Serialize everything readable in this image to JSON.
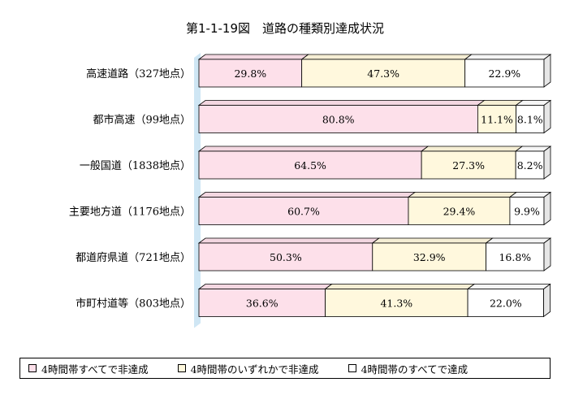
{
  "chart_data": {
    "type": "bar",
    "stacked": "percent",
    "orientation": "horizontal",
    "title": "第1-1-19図　道路の種類別達成状況",
    "categories": [
      "高速道路（327地点）",
      "都市高速（99地点）",
      "一般国道（1838地点）",
      "主要地方道（1176地点）",
      "都道府県道（721地点）",
      "市町村道等（803地点）"
    ],
    "series": [
      {
        "name": "4時間帯すべてで非達成",
        "color": "#fde0ea",
        "values": [
          29.8,
          80.8,
          64.5,
          60.7,
          50.3,
          36.6
        ]
      },
      {
        "name": "4時間帯のいずれかで非達成",
        "color": "#fff8dd",
        "values": [
          47.3,
          11.1,
          27.3,
          29.4,
          32.9,
          41.3
        ]
      },
      {
        "name": "4時間帯のすべてで達成",
        "color": "#ffffff",
        "values": [
          22.9,
          8.1,
          8.2,
          9.9,
          16.8,
          22.0
        ]
      }
    ],
    "value_labels": [
      [
        "29.8%",
        "47.3%",
        "22.9%"
      ],
      [
        "80.8%",
        "11.1%",
        "8.1%"
      ],
      [
        "64.5%",
        "27.3%",
        "8.2%"
      ],
      [
        "60.7%",
        "29.4%",
        "9.9%"
      ],
      [
        "50.3%",
        "32.9%",
        "16.8%"
      ],
      [
        "36.6%",
        "41.3%",
        "22.0%"
      ]
    ],
    "xlim": [
      0,
      100
    ],
    "legend_position": "bottom",
    "grid": false,
    "wall_color": "#cfe6f4"
  }
}
